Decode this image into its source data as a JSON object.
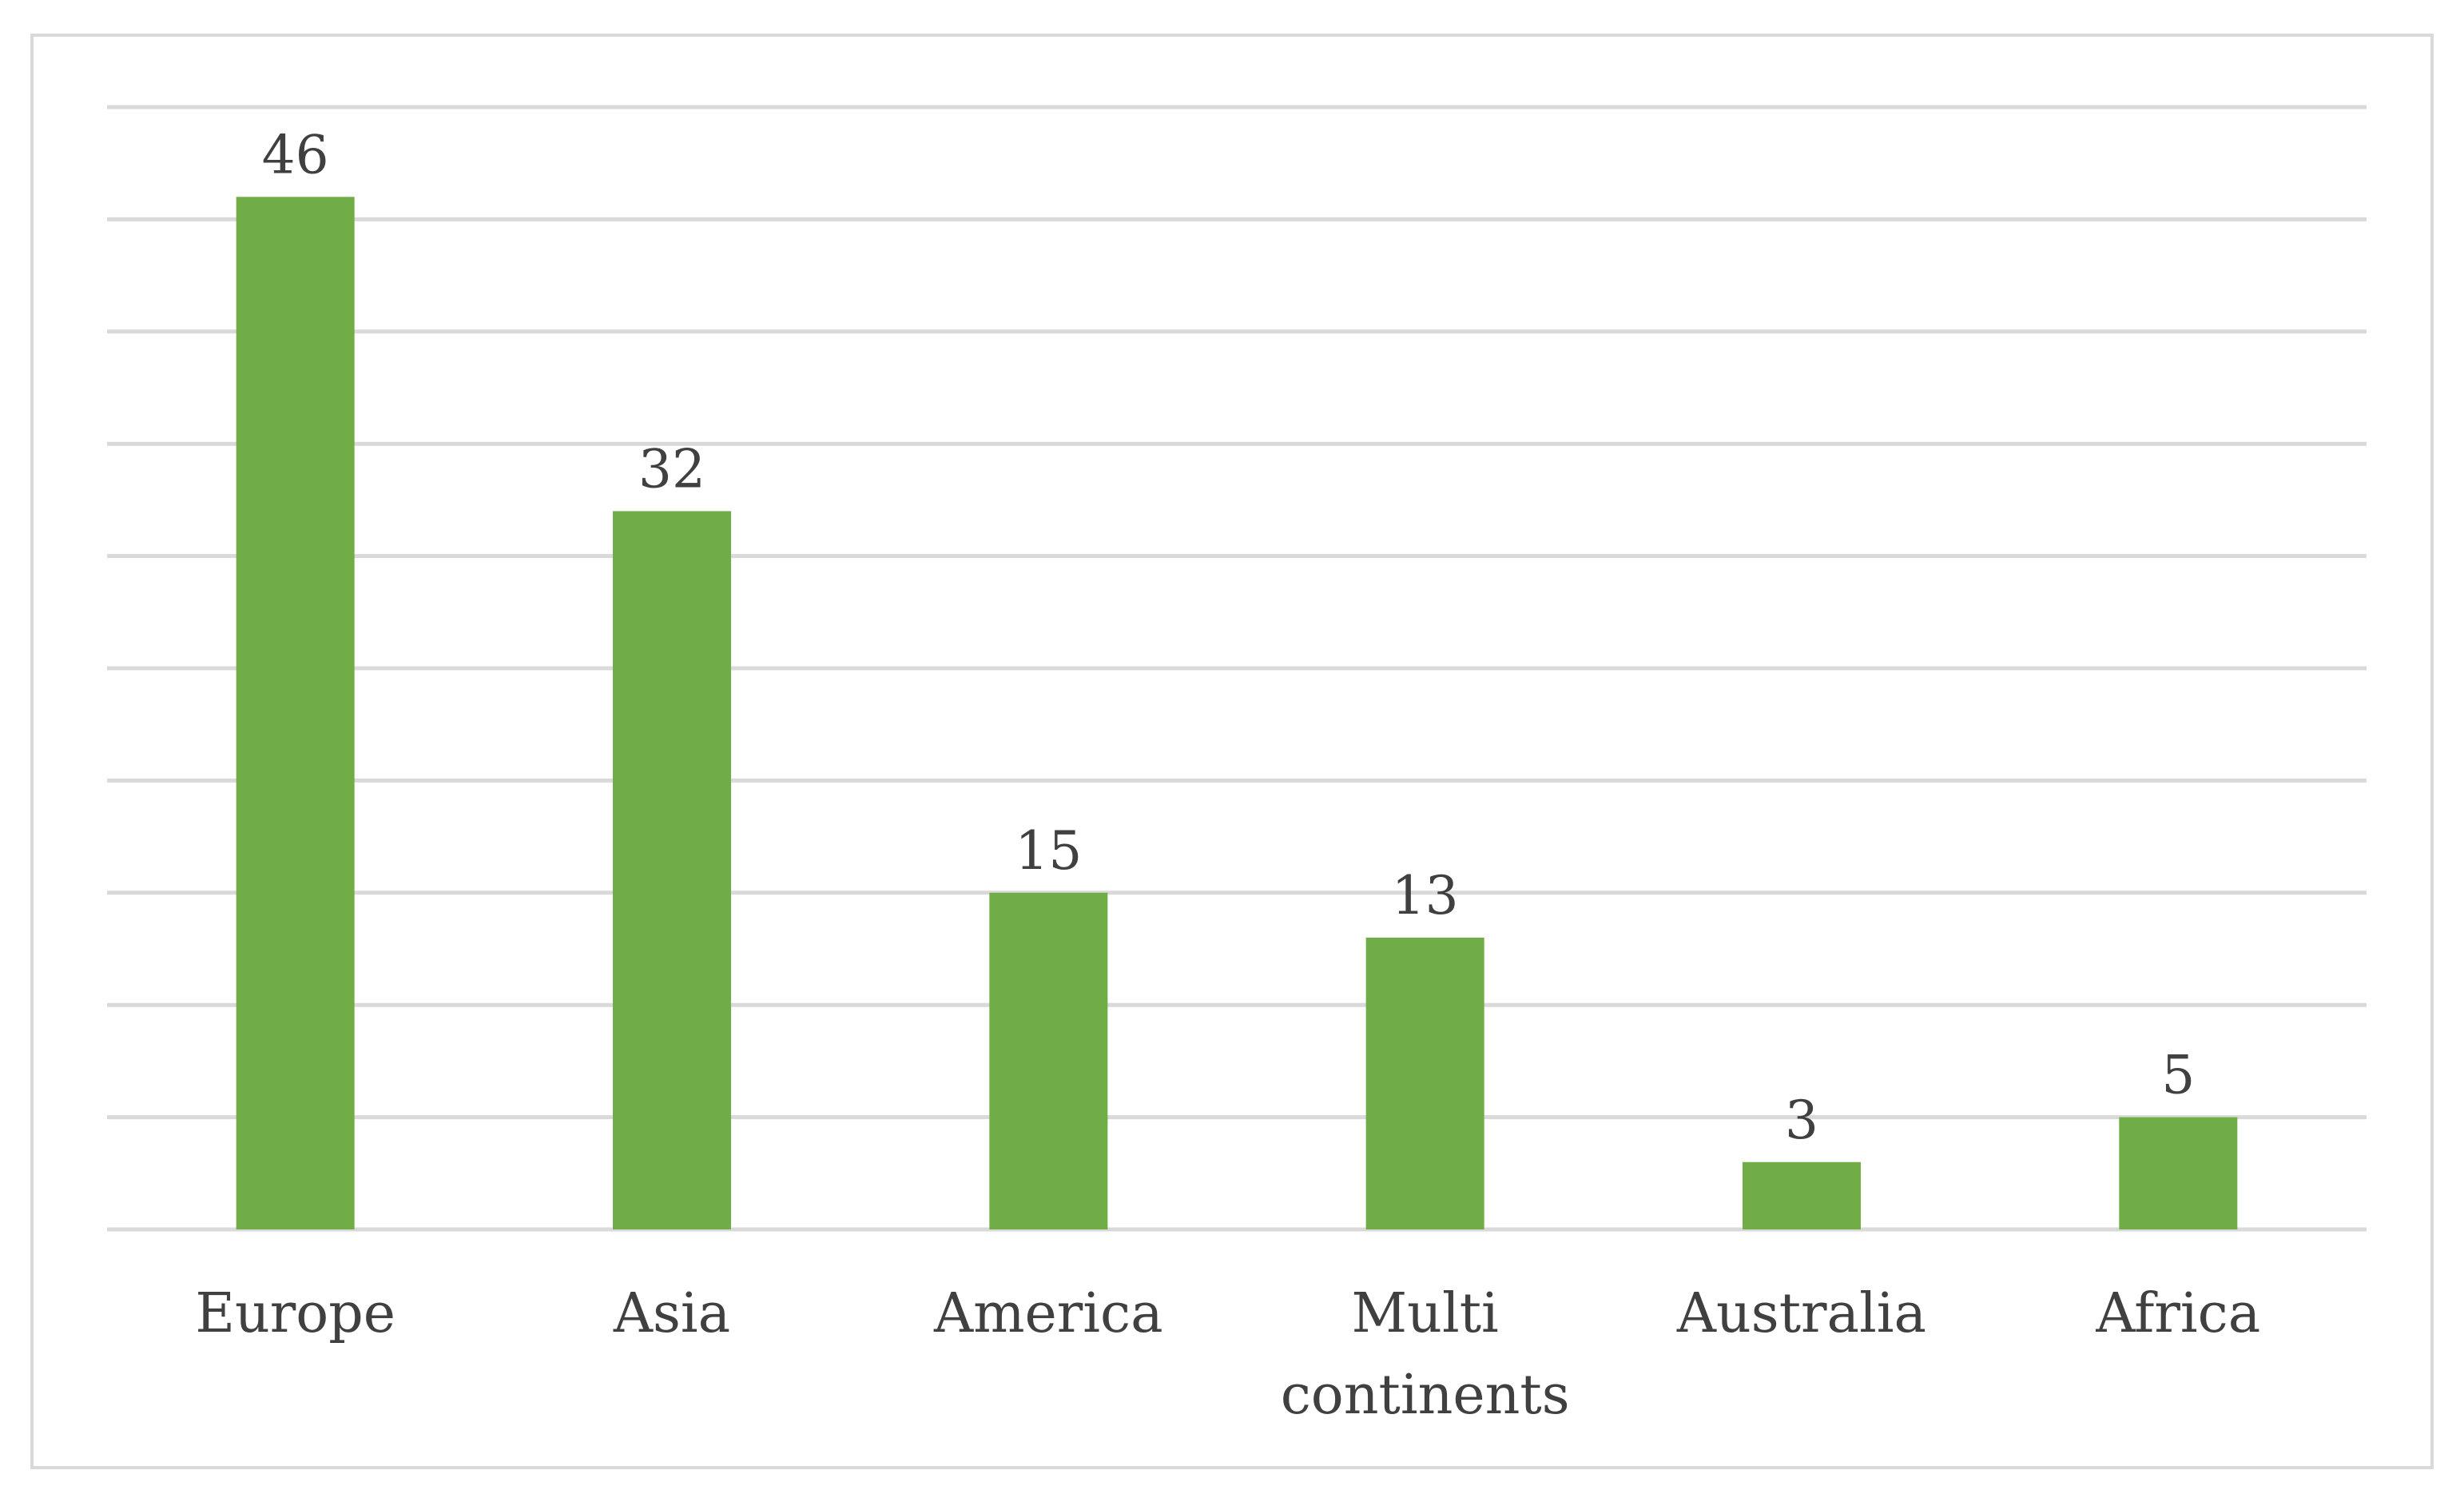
{
  "chart_data": {
    "type": "bar",
    "categories": [
      "Europe",
      "Asia",
      "America",
      "Multi continents",
      "Australia",
      "Africa"
    ],
    "category_lines": [
      [
        "Europe"
      ],
      [
        "Asia"
      ],
      [
        "America"
      ],
      [
        "Multi",
        "continents"
      ],
      [
        "Australia"
      ],
      [
        "Africa"
      ]
    ],
    "values": [
      46,
      32,
      15,
      13,
      3,
      5
    ],
    "data_labels": [
      "46",
      "32",
      "15",
      "13",
      "3",
      "5"
    ],
    "title": "",
    "xlabel": "",
    "ylabel": "",
    "ylim": [
      0,
      50
    ],
    "grid_step": 5,
    "grid": true,
    "legend": "none",
    "bar_color": "#70ad47",
    "grid_color": "#d9d9d9",
    "label_color": "#404040"
  }
}
